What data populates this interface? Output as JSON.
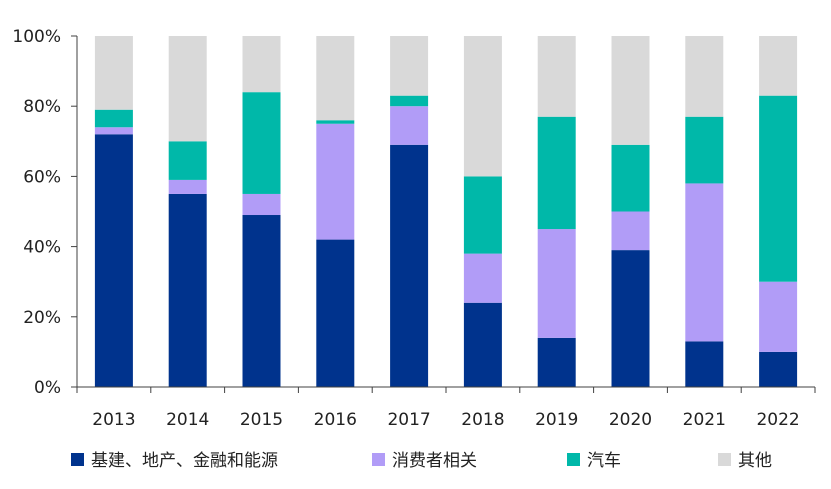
{
  "chart_data": {
    "type": "bar",
    "stacked": true,
    "categories": [
      "2013",
      "2014",
      "2015",
      "2016",
      "2017",
      "2018",
      "2019",
      "2020",
      "2021",
      "2022"
    ],
    "series": [
      {
        "name": "基建、地产、金融和能源",
        "color": "#00338d",
        "values": [
          72,
          55,
          49,
          42,
          69,
          24,
          14,
          39,
          13,
          10
        ]
      },
      {
        "name": "消费者相关",
        "color": "#b19cf7",
        "values": [
          2,
          4,
          6,
          33,
          11,
          14,
          31,
          11,
          45,
          20
        ]
      },
      {
        "name": "汽车",
        "color": "#00b8a9",
        "values": [
          5,
          11,
          29,
          1,
          3,
          22,
          32,
          19,
          19,
          53
        ]
      },
      {
        "name": "其他",
        "color": "#d9d9d9",
        "values": [
          21,
          30,
          16,
          24,
          17,
          40,
          23,
          31,
          23,
          17
        ]
      }
    ],
    "ylim": [
      0,
      100
    ],
    "yticks": [
      "0%",
      "20%",
      "40%",
      "60%",
      "80%",
      "100%"
    ],
    "title": "",
    "xlabel": "",
    "ylabel": "",
    "grid": false,
    "legend_position": "bottom"
  }
}
